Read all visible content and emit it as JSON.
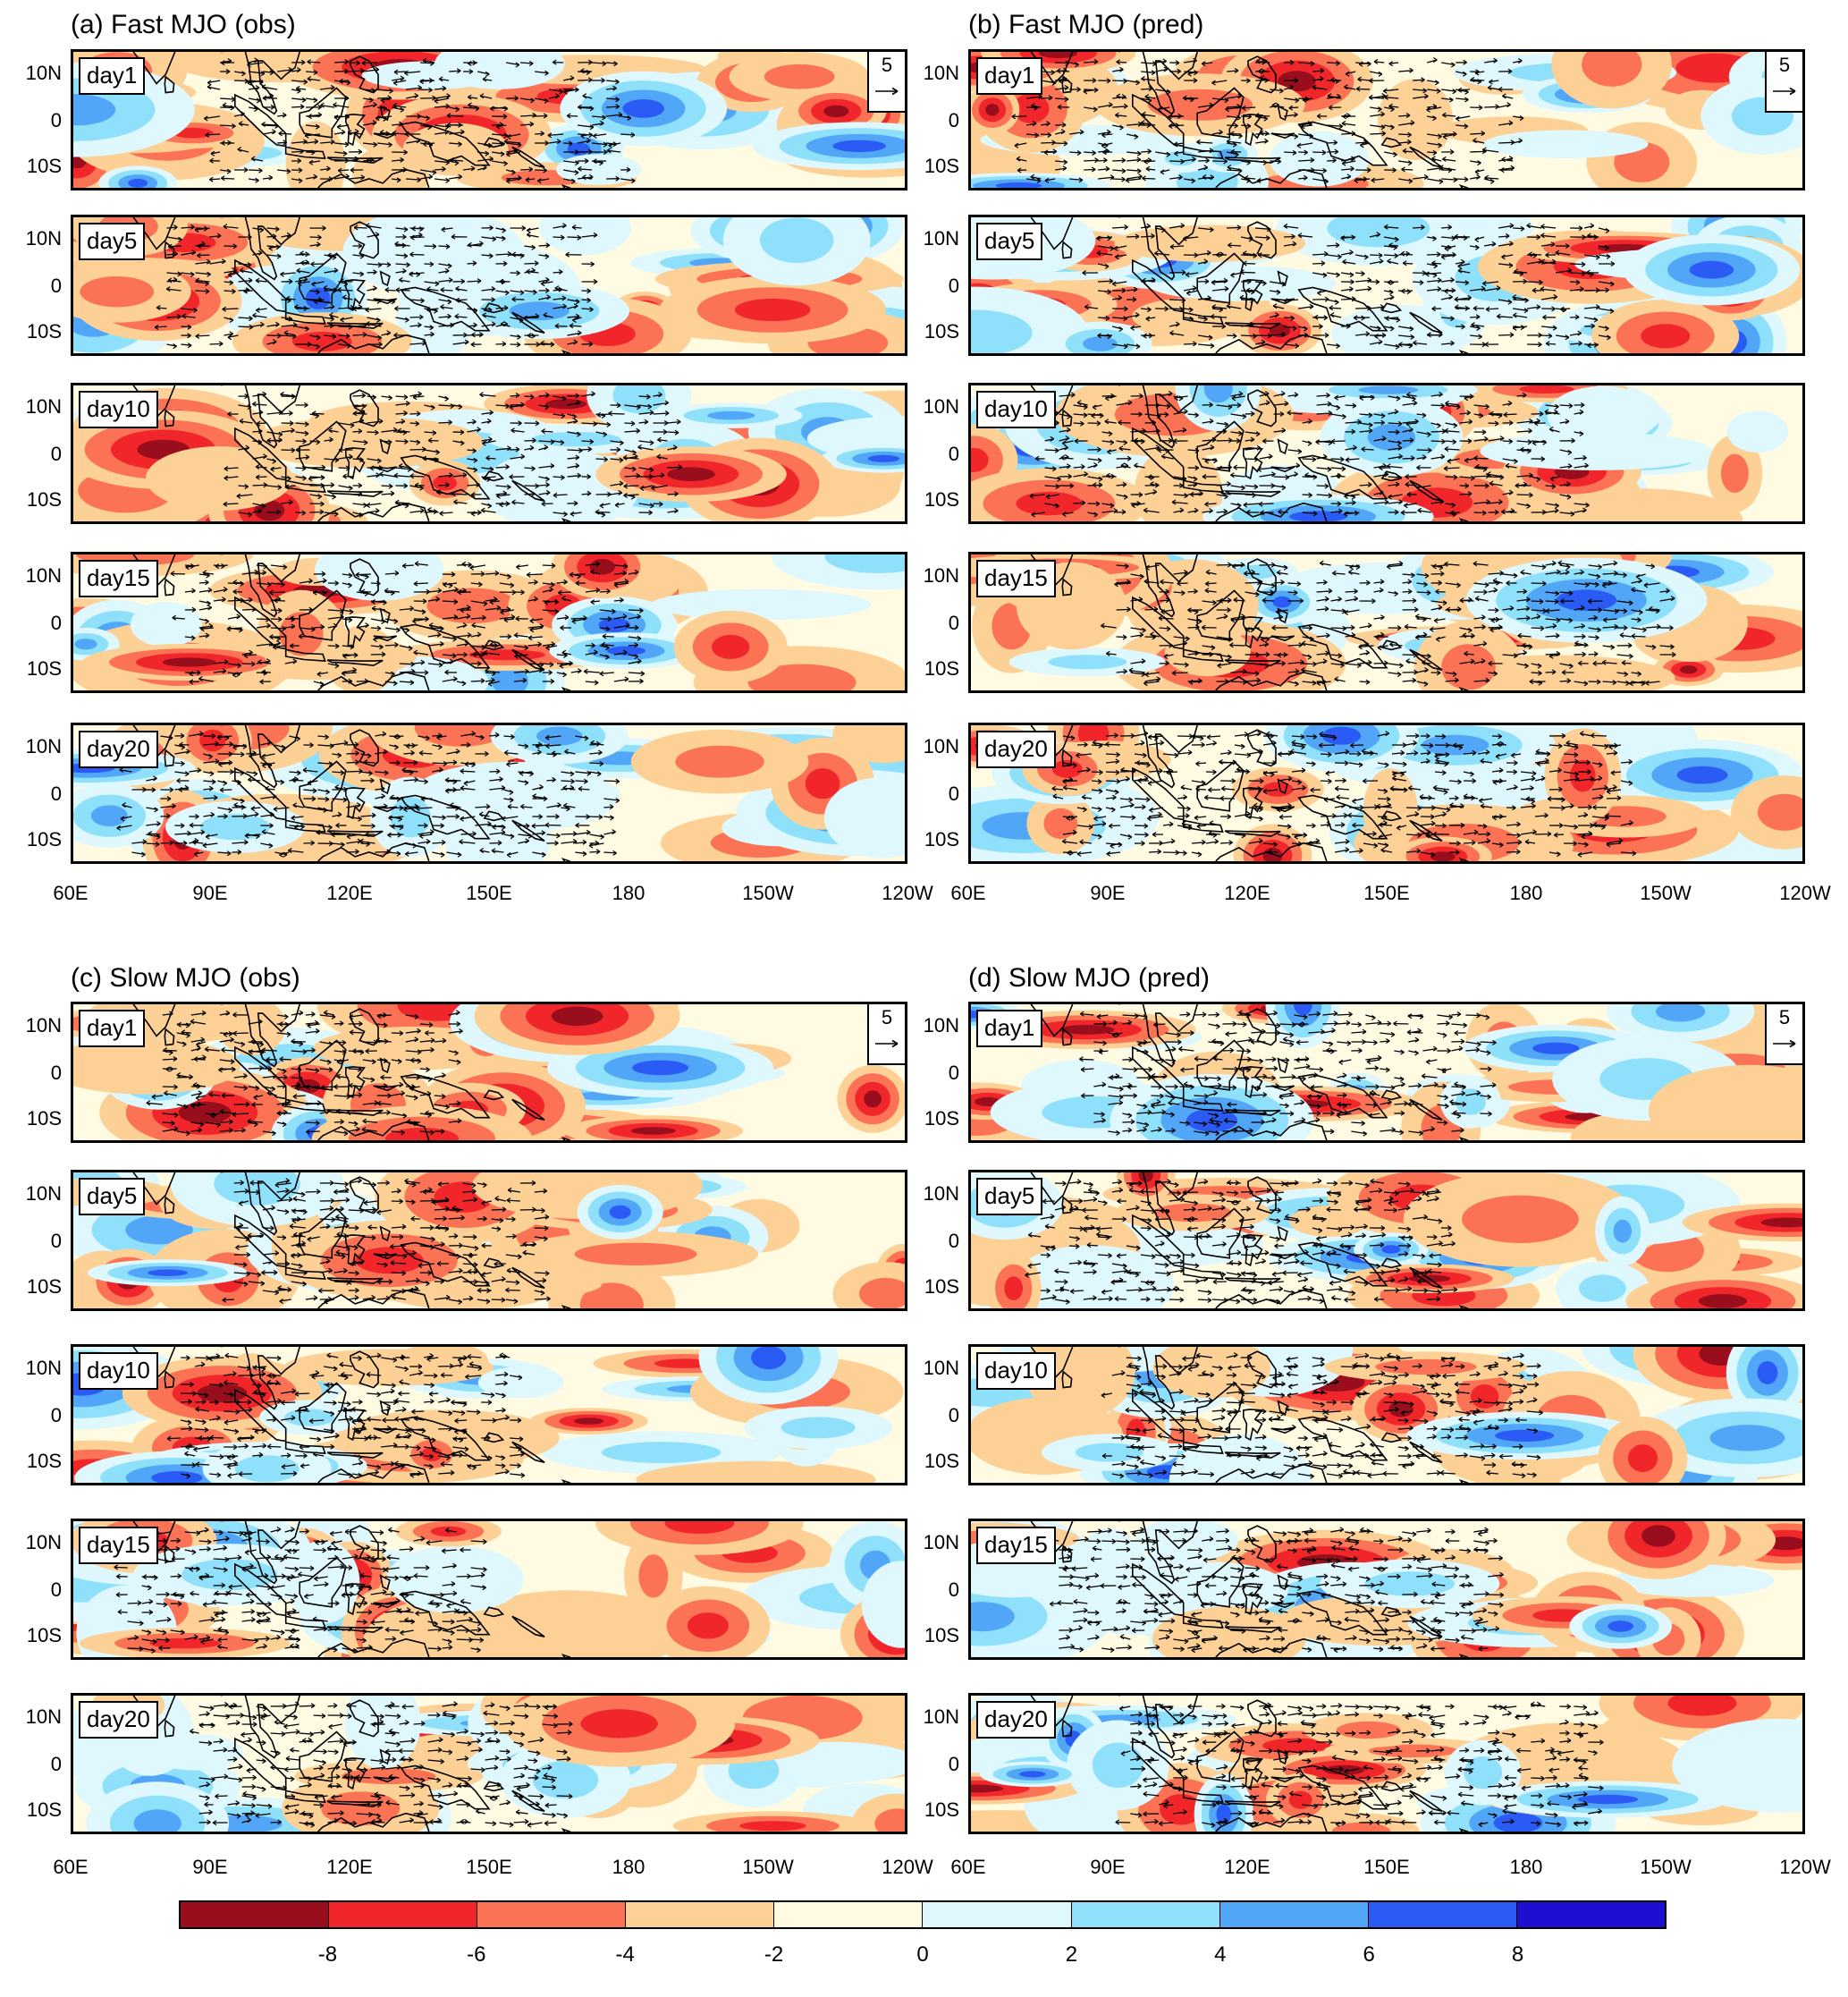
{
  "groups": [
    {
      "id": "a",
      "title": "(a) Fast MJO (obs)",
      "ref_label": "5",
      "days": [
        "day1",
        "day5",
        "day10",
        "day15",
        "day20"
      ]
    },
    {
      "id": "b",
      "title": "(b) Fast MJO (pred)",
      "ref_label": "5",
      "days": [
        "day1",
        "day5",
        "day10",
        "day15",
        "day20"
      ]
    },
    {
      "id": "c",
      "title": "(c) Slow MJO (obs)",
      "ref_label": "5",
      "days": [
        "day1",
        "day5",
        "day10",
        "day15",
        "day20"
      ]
    },
    {
      "id": "d",
      "title": "(d) Slow MJO (pred)",
      "ref_label": "5",
      "days": [
        "day1",
        "day5",
        "day10",
        "day15",
        "day20"
      ]
    }
  ],
  "lat_labels": [
    "10N",
    "0",
    "10S"
  ],
  "lon_labels": [
    "60E",
    "90E",
    "120E",
    "150E",
    "180",
    "150W",
    "120W"
  ],
  "colorbar": {
    "colors": [
      "#990e1d",
      "#f0262a",
      "#fb7255",
      "#fdd096",
      "#fffbe3",
      "#dff8fd",
      "#8fe0fa",
      "#52a6f7",
      "#2a5cf5",
      "#1d0fd1"
    ],
    "ticks": [
      "-8",
      "-6",
      "-4",
      "-2",
      "0",
      "2",
      "4",
      "6",
      "8"
    ]
  }
}
